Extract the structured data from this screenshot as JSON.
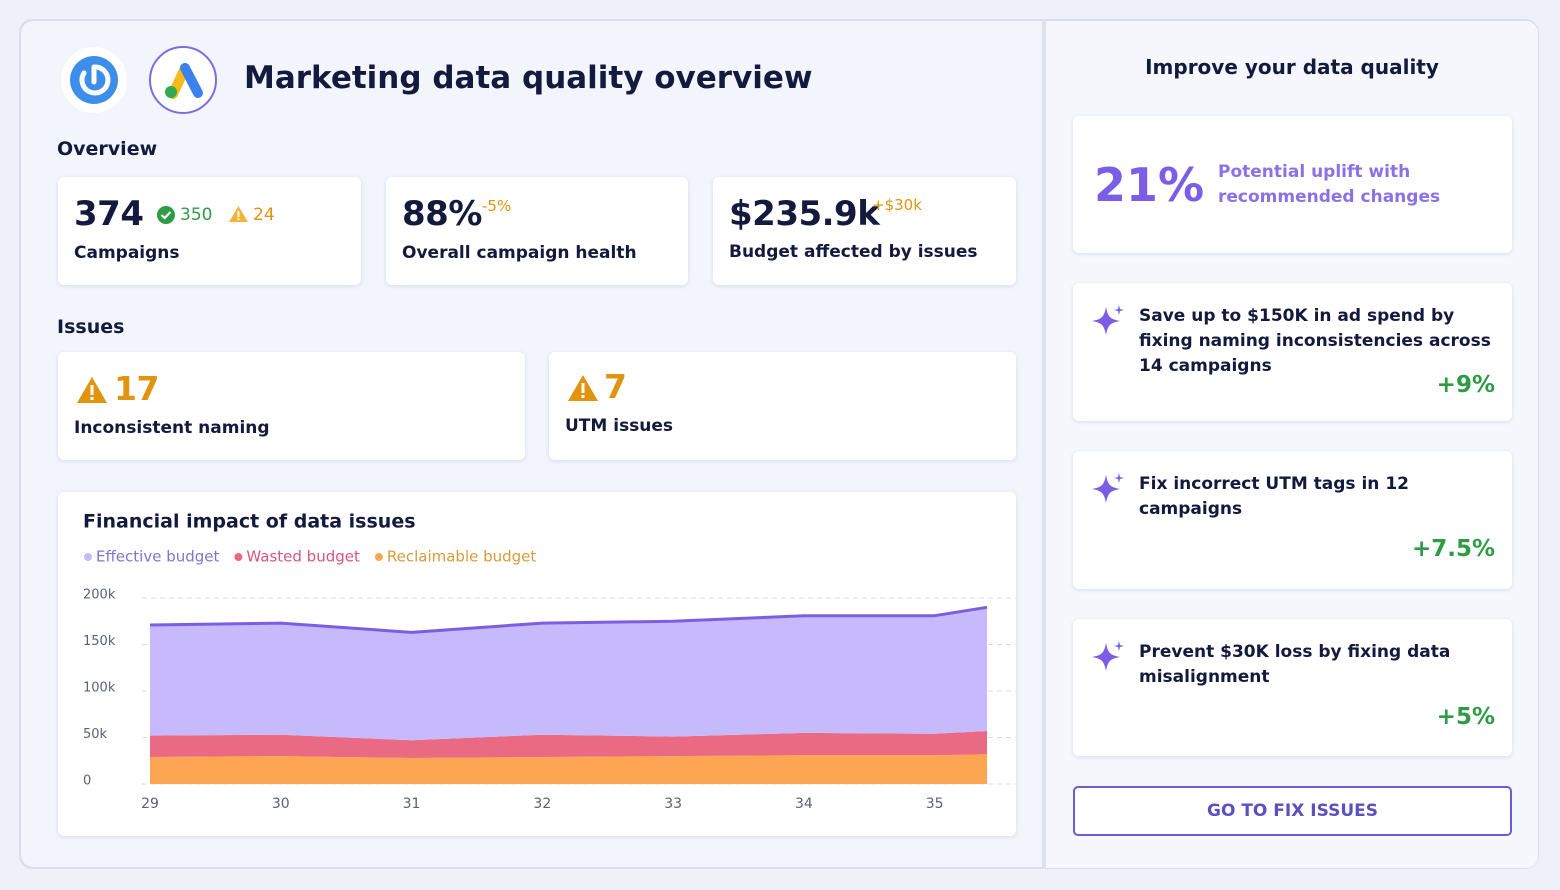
{
  "header": {
    "title": "Marketing data quality overview"
  },
  "overview": {
    "heading": "Overview",
    "cards": [
      {
        "value": "374",
        "label": "Campaigns",
        "ok": "350",
        "warn": "24"
      },
      {
        "value": "88%",
        "delta": "-5%",
        "label": "Overall campaign health"
      },
      {
        "value": "$235.9k",
        "delta": "+$30k",
        "label": "Budget affected by issues"
      }
    ]
  },
  "issues": {
    "heading": "Issues",
    "cards": [
      {
        "count": "17",
        "label": "Inconsistent naming"
      },
      {
        "count": "7",
        "label": "UTM issues"
      }
    ]
  },
  "chart_data": {
    "type": "stacked_area",
    "title": "Financial impact of data issues",
    "x": [
      29,
      30,
      31,
      32,
      33,
      34,
      35,
      35.4
    ],
    "xlim": [
      29,
      35.4
    ],
    "xticks": [
      29,
      30,
      31,
      32,
      33,
      34,
      35
    ],
    "ylim": [
      0,
      200000
    ],
    "yticks": [
      {
        "value": 0,
        "label": "0"
      },
      {
        "value": 50000,
        "label": "50k"
      },
      {
        "value": 100000,
        "label": "100k"
      },
      {
        "value": 150000,
        "label": "150k"
      },
      {
        "value": 200000,
        "label": "200k"
      }
    ],
    "grid": true,
    "series": [
      {
        "name": "Effective budget",
        "color": "#c6bafc",
        "values": [
          119000,
          120000,
          116000,
          120000,
          124000,
          126000,
          127000,
          133000
        ]
      },
      {
        "name": "Wasted budget",
        "color": "#ea6a84",
        "values": [
          23000,
          23000,
          19000,
          24000,
          21000,
          24000,
          23000,
          25000
        ]
      },
      {
        "name": "Reclaimable budget",
        "color": "#fca653",
        "values": [
          29000,
          30000,
          28000,
          29000,
          30000,
          31000,
          31000,
          32000
        ]
      }
    ]
  },
  "sidebar": {
    "title": "Improve your data quality",
    "uplift": {
      "value": "21%",
      "label": "Potential uplift with recommended changes"
    },
    "recommendations": [
      {
        "text": "Save up to $150K in ad spend by fixing naming inconsistencies across 14 campaigns",
        "impact": "+9%"
      },
      {
        "text": "Fix incorrect UTM tags in 12 campaigns",
        "impact": "+7.5%"
      },
      {
        "text": "Prevent $30K loss by fixing data misalignment",
        "impact": "+5%"
      }
    ],
    "button": "GO TO FIX ISSUES"
  }
}
